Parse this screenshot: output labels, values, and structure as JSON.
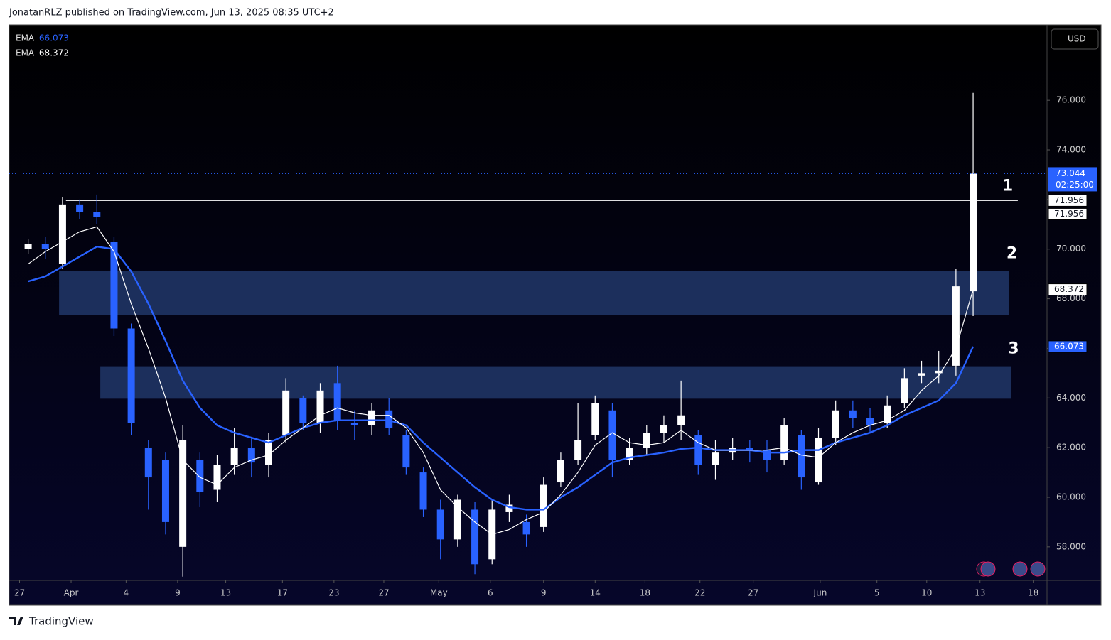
{
  "header": {
    "text": "JonatanRLZ published on TradingView.com, Jun 13, 2025 08:35 UTC+2"
  },
  "footer": {
    "text": "TradingView"
  },
  "currency": "USD",
  "chart_data": {
    "type": "candlestick",
    "up_color": "#ffffff",
    "down_color": "#2962ff",
    "x": [
      0.5,
      1.5,
      2.5,
      3.5,
      4.5,
      5.5,
      6.5,
      7.5,
      8.5,
      9.5,
      10.5,
      11.5,
      12.5,
      13.5,
      14.5,
      15.5,
      16.5,
      17.5,
      18.5,
      19.5,
      20.5,
      21.5,
      22.5,
      23.5,
      24.5,
      25.5,
      26.5,
      27.5,
      28.5,
      29.5,
      30.5,
      31.5,
      32.5,
      33.5,
      34.5,
      35.5,
      36.5,
      37.5,
      38.5,
      39.5,
      40.5,
      41.5,
      42.5,
      43.5,
      44.5,
      45.5,
      46.5,
      47.5,
      48.5,
      49.5,
      50.5,
      51.5,
      52.5,
      53.5,
      54.5,
      55.5
    ],
    "open": [
      70.0,
      70.2,
      69.4,
      71.8,
      71.5,
      70.3,
      66.8,
      62.0,
      61.5,
      58.0,
      61.5,
      60.3,
      61.3,
      62.0,
      61.3,
      62.5,
      64.0,
      63.0,
      64.6,
      63.0,
      62.9,
      63.5,
      62.5,
      61.0,
      59.5,
      58.3,
      59.5,
      57.5,
      59.4,
      59.0,
      58.8,
      60.6,
      61.5,
      62.5,
      63.5,
      61.5,
      62.0,
      62.6,
      62.9,
      62.5,
      61.3,
      61.8,
      62.0,
      61.9,
      61.5,
      62.5,
      60.6,
      62.4,
      63.5,
      63.2,
      63.0,
      63.8,
      64.9,
      65.0,
      65.3,
      68.3
    ],
    "high": [
      70.4,
      70.5,
      72.1,
      72.0,
      72.2,
      70.5,
      67.0,
      62.3,
      61.8,
      62.9,
      61.8,
      61.7,
      62.8,
      62.4,
      62.6,
      64.8,
      64.1,
      64.6,
      65.3,
      63.5,
      63.8,
      64.0,
      62.7,
      61.2,
      59.9,
      60.1,
      59.8,
      59.9,
      60.1,
      59.3,
      60.8,
      61.8,
      63.8,
      64.1,
      63.8,
      62.4,
      62.9,
      63.3,
      64.7,
      62.7,
      62.3,
      62.4,
      62.3,
      62.3,
      63.2,
      62.7,
      62.8,
      63.9,
      63.9,
      63.6,
      64.1,
      65.2,
      65.5,
      65.9,
      69.2,
      76.3
    ],
    "low": [
      69.8,
      69.6,
      69.2,
      71.2,
      71.0,
      66.5,
      62.5,
      59.5,
      58.5,
      56.8,
      59.6,
      59.8,
      60.9,
      60.8,
      60.8,
      62.2,
      62.7,
      62.6,
      62.7,
      62.3,
      62.5,
      62.5,
      60.9,
      59.2,
      57.5,
      58.0,
      56.9,
      57.3,
      59.0,
      58.0,
      58.6,
      60.4,
      61.3,
      62.3,
      60.8,
      61.3,
      61.7,
      62.2,
      62.3,
      60.9,
      60.7,
      61.5,
      61.4,
      61.0,
      61.3,
      60.3,
      60.5,
      62.1,
      62.8,
      62.6,
      62.8,
      63.6,
      64.6,
      64.6,
      64.9,
      67.3
    ],
    "close": [
      70.2,
      70.0,
      71.8,
      71.5,
      71.3,
      66.8,
      63.0,
      60.8,
      59.0,
      62.3,
      60.2,
      61.3,
      62.0,
      61.4,
      62.3,
      64.3,
      63.0,
      64.3,
      63.1,
      62.9,
      63.5,
      62.8,
      61.2,
      59.5,
      58.3,
      59.9,
      57.3,
      59.5,
      59.7,
      58.5,
      60.5,
      61.5,
      62.3,
      63.8,
      61.5,
      62.0,
      62.6,
      62.9,
      63.3,
      61.3,
      61.8,
      62.0,
      61.9,
      61.5,
      62.9,
      60.8,
      62.4,
      63.5,
      63.2,
      62.9,
      63.7,
      64.8,
      65.0,
      65.1,
      68.5,
      73.044
    ],
    "series": [
      {
        "name": "EMA",
        "color": "#2962ff",
        "values": [
          68.7,
          68.9,
          69.3,
          69.7,
          70.1,
          70.0,
          69.1,
          67.8,
          66.3,
          64.7,
          63.6,
          62.9,
          62.6,
          62.4,
          62.2,
          62.5,
          62.8,
          63.0,
          63.1,
          63.1,
          63.1,
          63.1,
          62.9,
          62.2,
          61.6,
          61.0,
          60.4,
          59.9,
          59.6,
          59.5,
          59.5,
          60.0,
          60.4,
          60.9,
          61.4,
          61.6,
          61.7,
          61.8,
          61.95,
          62.0,
          61.9,
          61.9,
          61.9,
          61.8,
          61.8,
          61.9,
          61.9,
          62.2,
          62.4,
          62.6,
          62.9,
          63.3,
          63.6,
          63.9,
          64.6,
          66.073
        ]
      },
      {
        "name": "EMA",
        "color": "#ffffff",
        "values": [
          69.4,
          69.9,
          70.3,
          70.7,
          70.9,
          69.9,
          67.8,
          66.0,
          64.0,
          61.5,
          60.8,
          60.5,
          61.2,
          61.5,
          61.7,
          62.3,
          62.8,
          63.3,
          63.6,
          63.4,
          63.3,
          63.3,
          62.8,
          61.8,
          60.3,
          59.6,
          59.0,
          58.5,
          58.7,
          59.1,
          59.4,
          60.1,
          61.0,
          62.1,
          62.6,
          62.2,
          62.1,
          62.2,
          62.7,
          62.2,
          61.9,
          61.9,
          61.9,
          61.9,
          62.0,
          61.7,
          61.6,
          62.2,
          62.6,
          62.9,
          63.1,
          63.5,
          64.3,
          64.9,
          66.0,
          68.372
        ]
      }
    ],
    "zones": [
      {
        "label": "2",
        "x": [
          2.3,
          57.6
        ],
        "y": [
          67.35,
          69.12
        ]
      },
      {
        "label": "3",
        "x": [
          4.7,
          57.7
        ],
        "y": [
          63.97,
          65.28
        ]
      }
    ],
    "levels": [
      {
        "label": "1",
        "value": 71.956,
        "x": [
          2.7,
          58.1
        ]
      }
    ],
    "countdown": "02:25:00",
    "ylim": [
      56.65,
      79.04
    ],
    "yticks": [
      {
        "value": 58,
        "label": "58.000"
      },
      {
        "value": 60,
        "label": "60.000"
      },
      {
        "value": 62,
        "label": "62.000"
      },
      {
        "value": 64,
        "label": "64.000"
      },
      {
        "value": 66,
        "label": "66.000"
      },
      {
        "value": 68,
        "label": "68.000"
      },
      {
        "value": 70,
        "label": "70.000"
      },
      {
        "value": 72,
        "label": "72.000"
      },
      {
        "value": 74,
        "label": "74.000"
      },
      {
        "value": 76,
        "label": "76.000"
      }
    ],
    "xlim": [
      -0.6,
      59.8
    ],
    "xticks": [
      {
        "value": 0,
        "label": "27"
      },
      {
        "value": 3.0,
        "label": "Apr"
      },
      {
        "value": 6.2,
        "label": "4"
      },
      {
        "value": 9.2,
        "label": "9"
      },
      {
        "value": 12.0,
        "label": "13"
      },
      {
        "value": 15.3,
        "label": "17"
      },
      {
        "value": 18.3,
        "label": "23"
      },
      {
        "value": 21.2,
        "label": "27"
      },
      {
        "value": 24.4,
        "label": "May"
      },
      {
        "value": 27.4,
        "label": "6"
      },
      {
        "value": 30.5,
        "label": "9"
      },
      {
        "value": 33.5,
        "label": "14"
      },
      {
        "value": 36.4,
        "label": "18"
      },
      {
        "value": 39.6,
        "label": "22"
      },
      {
        "value": 42.7,
        "label": "27"
      },
      {
        "value": 46.6,
        "label": "Jun"
      },
      {
        "value": 49.9,
        "label": "5"
      },
      {
        "value": 52.8,
        "label": "10"
      },
      {
        "value": 55.9,
        "label": "13"
      },
      {
        "value": 59.0,
        "label": "18"
      }
    ]
  }
}
